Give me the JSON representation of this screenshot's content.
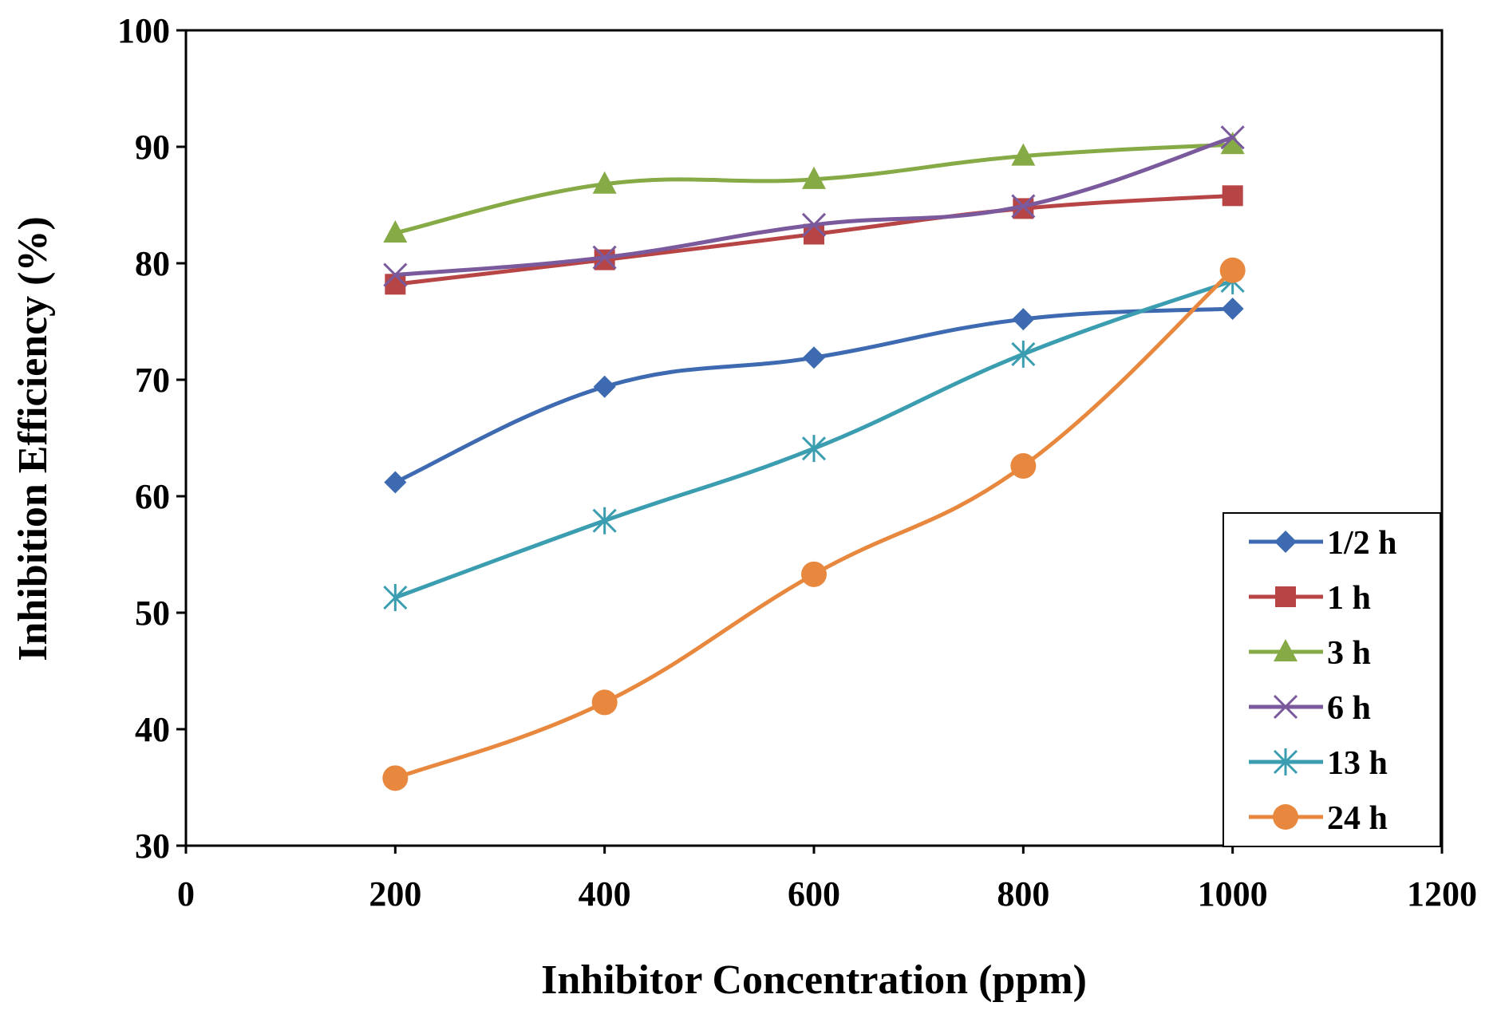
{
  "chart_data": {
    "type": "line",
    "xlabel": "Inhibitor Concentration (ppm)",
    "ylabel": "Inhibition Efficiency (%)",
    "xlim": [
      0,
      1200
    ],
    "ylim": [
      30,
      100
    ],
    "x_ticks": [
      "0",
      "200",
      "400",
      "600",
      "800",
      "1000",
      "1200"
    ],
    "y_ticks": [
      "30",
      "40",
      "50",
      "60",
      "70",
      "80",
      "90",
      "100"
    ],
    "x": [
      200,
      400,
      600,
      800,
      1000
    ],
    "grid": false,
    "legend_position": "bottom-right",
    "series": [
      {
        "name": "1/2 h",
        "values": [
          61.2,
          69.4,
          71.9,
          75.2,
          76.1
        ],
        "color": "#3d6ab0",
        "marker": "diamond"
      },
      {
        "name": "1 h",
        "values": [
          78.2,
          80.3,
          82.5,
          84.7,
          85.8
        ],
        "color": "#b84545",
        "marker": "square"
      },
      {
        "name": "3 h",
        "values": [
          82.6,
          86.8,
          87.2,
          89.2,
          90.2
        ],
        "color": "#86aa45",
        "marker": "triangle"
      },
      {
        "name": "6 h",
        "values": [
          79.0,
          80.5,
          83.3,
          84.9,
          90.8
        ],
        "color": "#7a5a9c",
        "marker": "x"
      },
      {
        "name": "13 h",
        "values": [
          51.3,
          57.9,
          64.1,
          72.2,
          78.5
        ],
        "color": "#3b9db0",
        "marker": "asterisk"
      },
      {
        "name": "24 h",
        "values": [
          35.8,
          42.3,
          53.3,
          62.6,
          79.4
        ],
        "color": "#e8883e",
        "marker": "circle"
      }
    ]
  }
}
